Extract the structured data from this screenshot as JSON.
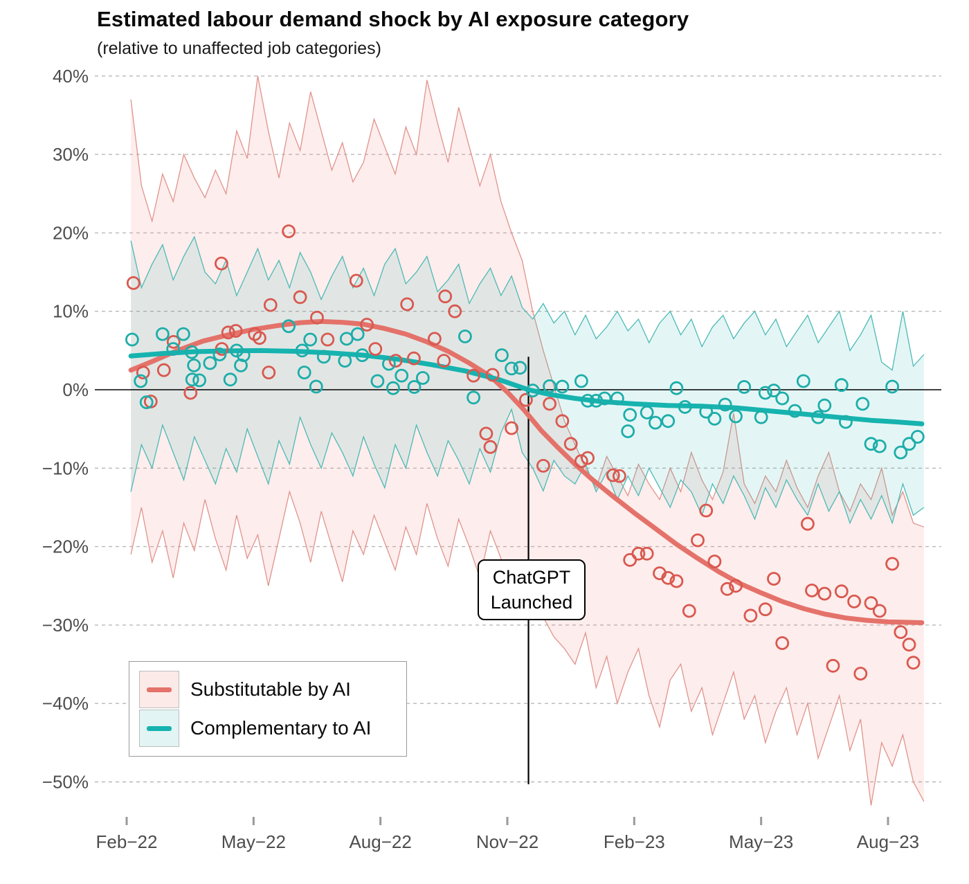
{
  "title": "Estimated labour demand shock by AI exposure category",
  "subtitle": "(relative to unaffected job categories)",
  "annotation": {
    "line1": "ChatGPT",
    "line2": "Launched"
  },
  "legend": {
    "items": [
      {
        "id": "substitutable",
        "label": "Substitutable by AI",
        "line_color": "#e4726a",
        "fill_color": "#fbeae8"
      },
      {
        "id": "complementary",
        "label": "Complementary to AI",
        "line_color": "#16b3af",
        "fill_color": "#e2f4f3"
      }
    ]
  },
  "colors": {
    "grid": "#b8b8b8",
    "axis_text": "#4d4d4d",
    "zero_line": "#000000",
    "event_line": "#000000",
    "red_line": "#e4726a",
    "red_edge": "#e0938c",
    "red_fill": "rgba(238,118,108,0.13)",
    "teal_line": "#16b3af",
    "teal_edge": "#4cb9b5",
    "teal_fill": "rgba(28,177,173,0.12)"
  },
  "chart_data": {
    "type": "line",
    "title": "Estimated labour demand shock by AI exposure category",
    "subtitle": "(relative to unaffected job categories)",
    "grid": true,
    "legend_position": "bottom-left",
    "x_axis": {
      "unit": "months since Feb-2022",
      "tick_months": [
        0,
        3,
        6,
        9,
        12,
        15,
        18
      ],
      "tick_labels": [
        "Feb−22",
        "May−22",
        "Aug−22",
        "Nov−22",
        "Feb−23",
        "May−23",
        "Aug−23"
      ]
    },
    "y_axis": {
      "unit": "percent",
      "tick_values": [
        40,
        30,
        20,
        10,
        0,
        -10,
        -20,
        -30,
        -40,
        -50
      ],
      "tick_labels": [
        "40%",
        "30%",
        "20%",
        "10%",
        "0%",
        "−10%",
        "−20%",
        "−30%",
        "−40%",
        "−50%"
      ],
      "ylim": [
        -53,
        41
      ]
    },
    "event_line": {
      "month": 9.5,
      "label": "ChatGPT Launched"
    },
    "band_x_start": 0.1,
    "band_x_step": 0.25,
    "series": [
      {
        "name": "Substitutable by AI",
        "band_upper": [
          37,
          26,
          21.5,
          27.5,
          24,
          30,
          27,
          24.5,
          28,
          25,
          33,
          29.5,
          40,
          33,
          27,
          34,
          30.5,
          38,
          33,
          28,
          31.5,
          26.5,
          29,
          34.5,
          31,
          27.5,
          33.5,
          30,
          39.5,
          34,
          29,
          36,
          31,
          26,
          30,
          24,
          20,
          16.5,
          10,
          5,
          0.5,
          -4,
          -7,
          -10,
          -12.5,
          -8.5,
          -11,
          -13.5,
          -9.5,
          -12,
          -14,
          -10,
          -13,
          -8,
          -11.5,
          -14,
          -10.5,
          -3,
          -12,
          -14.5,
          -11,
          -13,
          -9,
          -12.5,
          -15,
          -11,
          -8,
          -13,
          -15.5,
          -12,
          -14,
          -10,
          -16,
          -13,
          -17,
          -17.5
        ],
        "band_lower": [
          -21,
          -15,
          -22,
          -18,
          -24,
          -17,
          -20.5,
          -14,
          -19,
          -23,
          -16,
          -21.5,
          -18.5,
          -25,
          -19,
          -13,
          -17,
          -22,
          -15.5,
          -20,
          -24.5,
          -18,
          -21,
          -16,
          -19.5,
          -23,
          -17.5,
          -21,
          -14.5,
          -19,
          -22.5,
          -16.5,
          -20,
          -24,
          -18,
          -21.5,
          -25.5,
          -23,
          -26,
          -29,
          -31.5,
          -33,
          -35,
          -31,
          -38,
          -34,
          -40,
          -36,
          -33,
          -39,
          -43,
          -37,
          -35,
          -41,
          -38,
          -44,
          -40,
          -36,
          -42,
          -39,
          -45,
          -41,
          -38,
          -44,
          -40,
          -47,
          -43,
          -39,
          -46,
          -42,
          -53,
          -45,
          -48,
          -44,
          -50,
          -52.5
        ],
        "trend": [
          [
            0.1,
            2.5
          ],
          [
            0.6,
            3.6
          ],
          [
            1.2,
            5.0
          ],
          [
            1.8,
            6.2
          ],
          [
            2.4,
            7.0
          ],
          [
            3.0,
            7.7
          ],
          [
            3.6,
            8.2
          ],
          [
            4.1,
            8.55
          ],
          [
            4.6,
            8.7
          ],
          [
            5.1,
            8.6
          ],
          [
            5.6,
            8.35
          ],
          [
            6.1,
            7.8
          ],
          [
            6.6,
            7.1
          ],
          [
            7.1,
            6.1
          ],
          [
            7.6,
            4.9
          ],
          [
            8.1,
            3.4
          ],
          [
            8.6,
            1.7
          ],
          [
            9.0,
            -0.3
          ],
          [
            9.4,
            -2.6
          ],
          [
            9.8,
            -5.2
          ],
          [
            10.2,
            -7.4
          ],
          [
            10.6,
            -9.5
          ],
          [
            11.0,
            -11.4
          ],
          [
            11.5,
            -13.6
          ],
          [
            12.0,
            -15.7
          ],
          [
            12.5,
            -17.7
          ],
          [
            13.0,
            -19.7
          ],
          [
            13.5,
            -21.5
          ],
          [
            14.0,
            -23.2
          ],
          [
            14.5,
            -24.7
          ],
          [
            15.0,
            -25.9
          ],
          [
            15.5,
            -27.0
          ],
          [
            16.0,
            -27.9
          ],
          [
            16.5,
            -28.6
          ],
          [
            17.0,
            -29.1
          ],
          [
            17.5,
            -29.4
          ],
          [
            18.0,
            -29.6
          ],
          [
            18.4,
            -29.65
          ],
          [
            18.8,
            -29.7
          ]
        ],
        "points": [
          [
            0.16,
            13.6
          ],
          [
            0.39,
            2.2
          ],
          [
            0.57,
            -1.5
          ],
          [
            0.88,
            2.5
          ],
          [
            1.11,
            6.1
          ],
          [
            1.51,
            -0.4
          ],
          [
            2.24,
            16.1
          ],
          [
            2.25,
            5.2
          ],
          [
            2.4,
            7.3
          ],
          [
            2.58,
            7.5
          ],
          [
            3.03,
            7.1
          ],
          [
            3.14,
            6.6
          ],
          [
            3.36,
            2.2
          ],
          [
            3.4,
            10.8
          ],
          [
            3.83,
            20.2
          ],
          [
            4.1,
            11.8
          ],
          [
            4.5,
            9.2
          ],
          [
            4.75,
            6.4
          ],
          [
            5.43,
            13.9
          ],
          [
            5.68,
            8.3
          ],
          [
            5.88,
            5.2
          ],
          [
            6.36,
            3.7
          ],
          [
            6.63,
            10.9
          ],
          [
            6.79,
            4.0
          ],
          [
            7.28,
            6.5
          ],
          [
            7.5,
            3.7
          ],
          [
            7.53,
            11.9
          ],
          [
            7.76,
            10.0
          ],
          [
            8.2,
            1.8
          ],
          [
            8.5,
            -5.6
          ],
          [
            8.6,
            -7.3
          ],
          [
            8.65,
            1.9
          ],
          [
            9.1,
            -4.9
          ],
          [
            9.44,
            -1.3
          ],
          [
            9.85,
            -9.7
          ],
          [
            10.0,
            -1.8
          ],
          [
            10.3,
            -4.0
          ],
          [
            10.5,
            -6.9
          ],
          [
            10.75,
            -9.1
          ],
          [
            10.9,
            -8.7
          ],
          [
            11.5,
            -10.9
          ],
          [
            11.65,
            -11.0
          ],
          [
            11.9,
            -21.7
          ],
          [
            12.1,
            -20.9
          ],
          [
            12.3,
            -20.9
          ],
          [
            12.6,
            -23.4
          ],
          [
            12.8,
            -24.0
          ],
          [
            13.0,
            -24.4
          ],
          [
            13.3,
            -28.2
          ],
          [
            13.5,
            -19.2
          ],
          [
            13.7,
            -15.4
          ],
          [
            13.9,
            -21.9
          ],
          [
            14.2,
            -25.4
          ],
          [
            14.4,
            -25.0
          ],
          [
            14.75,
            -28.8
          ],
          [
            15.1,
            -28.0
          ],
          [
            15.3,
            -24.1
          ],
          [
            15.5,
            -32.3
          ],
          [
            16.1,
            -17.1
          ],
          [
            16.2,
            -25.6
          ],
          [
            16.5,
            -26.0
          ],
          [
            16.7,
            -35.2
          ],
          [
            16.9,
            -25.7
          ],
          [
            17.2,
            -27.0
          ],
          [
            17.35,
            -36.2
          ],
          [
            17.6,
            -27.2
          ],
          [
            17.8,
            -28.2
          ],
          [
            18.1,
            -22.2
          ],
          [
            18.3,
            -30.9
          ],
          [
            18.5,
            -32.5
          ],
          [
            18.6,
            -34.8
          ]
        ]
      },
      {
        "name": "Complementary to AI",
        "band_upper": [
          19,
          13,
          16,
          18.5,
          14,
          17,
          19.5,
          15,
          13.5,
          16.5,
          12,
          15,
          18,
          14,
          16.5,
          13,
          17.5,
          15,
          11.5,
          14.5,
          17,
          13,
          15.5,
          12,
          16,
          18,
          13.5,
          15,
          17,
          12.5,
          14,
          16,
          11,
          13.5,
          15.5,
          12,
          14.5,
          10.5,
          9,
          11,
          8.5,
          10,
          7,
          9.5,
          6.5,
          8,
          10,
          7.5,
          9,
          6,
          8.5,
          10,
          7,
          9,
          5.5,
          8,
          9.5,
          6.5,
          8.5,
          10,
          7,
          9,
          5.5,
          7.5,
          9.5,
          6,
          8,
          10,
          5,
          7,
          9.5,
          3.5,
          2.5,
          10,
          3,
          4.5
        ],
        "band_lower": [
          -13,
          -7,
          -10,
          -4.5,
          -8,
          -11.5,
          -6,
          -9,
          -12,
          -7.5,
          -10.5,
          -5,
          -8.5,
          -12,
          -6.5,
          -9.5,
          -3.5,
          -7,
          -10,
          -5.5,
          -8,
          -11,
          -6,
          -9.5,
          -12.5,
          -7,
          -10,
          -4.5,
          -8,
          -11,
          -6.5,
          -9,
          -12,
          -7.5,
          -10.5,
          -5.5,
          -2.5,
          -8,
          -10,
          -12.9,
          -9,
          -11,
          -12,
          -9.5,
          -13,
          -10.5,
          -14,
          -11,
          -13.5,
          -10,
          -12.5,
          -15,
          -11.5,
          -13,
          -16,
          -12,
          -14.5,
          -11,
          -13.5,
          -16.5,
          -12.5,
          -15,
          -11.5,
          -14,
          -16,
          -12,
          -15.5,
          -13,
          -17,
          -14,
          -16.5,
          -13.5,
          -17,
          -12,
          -16,
          -15
        ],
        "trend": [
          [
            0.1,
            4.3
          ],
          [
            0.8,
            4.6
          ],
          [
            1.6,
            4.85
          ],
          [
            2.4,
            4.95
          ],
          [
            3.2,
            5.0
          ],
          [
            4.0,
            4.9
          ],
          [
            4.8,
            4.7
          ],
          [
            5.6,
            4.4
          ],
          [
            6.4,
            3.9
          ],
          [
            7.2,
            3.2
          ],
          [
            8.0,
            2.4
          ],
          [
            8.8,
            1.3
          ],
          [
            9.5,
            0.0
          ],
          [
            10.0,
            -0.6
          ],
          [
            10.6,
            -1.1
          ],
          [
            11.2,
            -1.5
          ],
          [
            12.0,
            -1.8
          ],
          [
            12.8,
            -2.0
          ],
          [
            13.6,
            -2.1
          ],
          [
            14.4,
            -2.3
          ],
          [
            15.2,
            -2.7
          ],
          [
            16.0,
            -3.1
          ],
          [
            16.8,
            -3.5
          ],
          [
            17.6,
            -3.9
          ],
          [
            18.2,
            -4.1
          ],
          [
            18.8,
            -4.35
          ]
        ],
        "points": [
          [
            0.13,
            6.4
          ],
          [
            0.33,
            1.1
          ],
          [
            0.47,
            -1.6
          ],
          [
            0.85,
            7.1
          ],
          [
            1.1,
            5.2
          ],
          [
            1.34,
            7.1
          ],
          [
            1.54,
            4.8
          ],
          [
            1.55,
            1.3
          ],
          [
            1.59,
            3.1
          ],
          [
            1.72,
            1.2
          ],
          [
            1.97,
            3.4
          ],
          [
            2.2,
            4.5
          ],
          [
            2.45,
            1.3
          ],
          [
            2.6,
            5.0
          ],
          [
            2.7,
            3.1
          ],
          [
            2.76,
            4.4
          ],
          [
            3.83,
            8.1
          ],
          [
            4.15,
            5.0
          ],
          [
            4.2,
            2.2
          ],
          [
            4.34,
            6.4
          ],
          [
            4.48,
            0.4
          ],
          [
            4.66,
            4.2
          ],
          [
            5.16,
            3.7
          ],
          [
            5.2,
            6.5
          ],
          [
            5.46,
            7.1
          ],
          [
            5.57,
            4.4
          ],
          [
            5.93,
            1.1
          ],
          [
            6.2,
            3.3
          ],
          [
            6.3,
            0.2
          ],
          [
            6.5,
            1.8
          ],
          [
            6.8,
            0.35
          ],
          [
            7.0,
            1.5
          ],
          [
            8.0,
            6.8
          ],
          [
            8.2,
            -1.0
          ],
          [
            8.87,
            4.4
          ],
          [
            9.1,
            2.7
          ],
          [
            9.3,
            2.8
          ],
          [
            9.6,
            -0.1
          ],
          [
            10.0,
            0.45
          ],
          [
            10.3,
            0.4
          ],
          [
            10.75,
            1.1
          ],
          [
            10.9,
            -1.4
          ],
          [
            11.1,
            -1.4
          ],
          [
            11.3,
            -1.1
          ],
          [
            11.6,
            -1.1
          ],
          [
            11.85,
            -5.3
          ],
          [
            11.9,
            -3.2
          ],
          [
            12.3,
            -2.9
          ],
          [
            12.5,
            -4.2
          ],
          [
            12.8,
            -4.0
          ],
          [
            13.0,
            0.2
          ],
          [
            13.2,
            -2.2
          ],
          [
            13.7,
            -2.8
          ],
          [
            13.9,
            -3.7
          ],
          [
            14.15,
            -1.9
          ],
          [
            14.4,
            -3.4
          ],
          [
            14.6,
            0.35
          ],
          [
            15.0,
            -3.5
          ],
          [
            15.1,
            -0.4
          ],
          [
            15.3,
            -0.1
          ],
          [
            15.5,
            -1.1
          ],
          [
            15.8,
            -2.7
          ],
          [
            16.0,
            1.1
          ],
          [
            16.35,
            -3.5
          ],
          [
            16.5,
            -2.0
          ],
          [
            16.9,
            0.6
          ],
          [
            17.0,
            -4.1
          ],
          [
            17.4,
            -1.8
          ],
          [
            17.6,
            -6.9
          ],
          [
            17.8,
            -7.2
          ],
          [
            18.1,
            0.4
          ],
          [
            18.3,
            -8.0
          ],
          [
            18.5,
            -6.9
          ],
          [
            18.7,
            -6.0
          ]
        ]
      }
    ]
  }
}
